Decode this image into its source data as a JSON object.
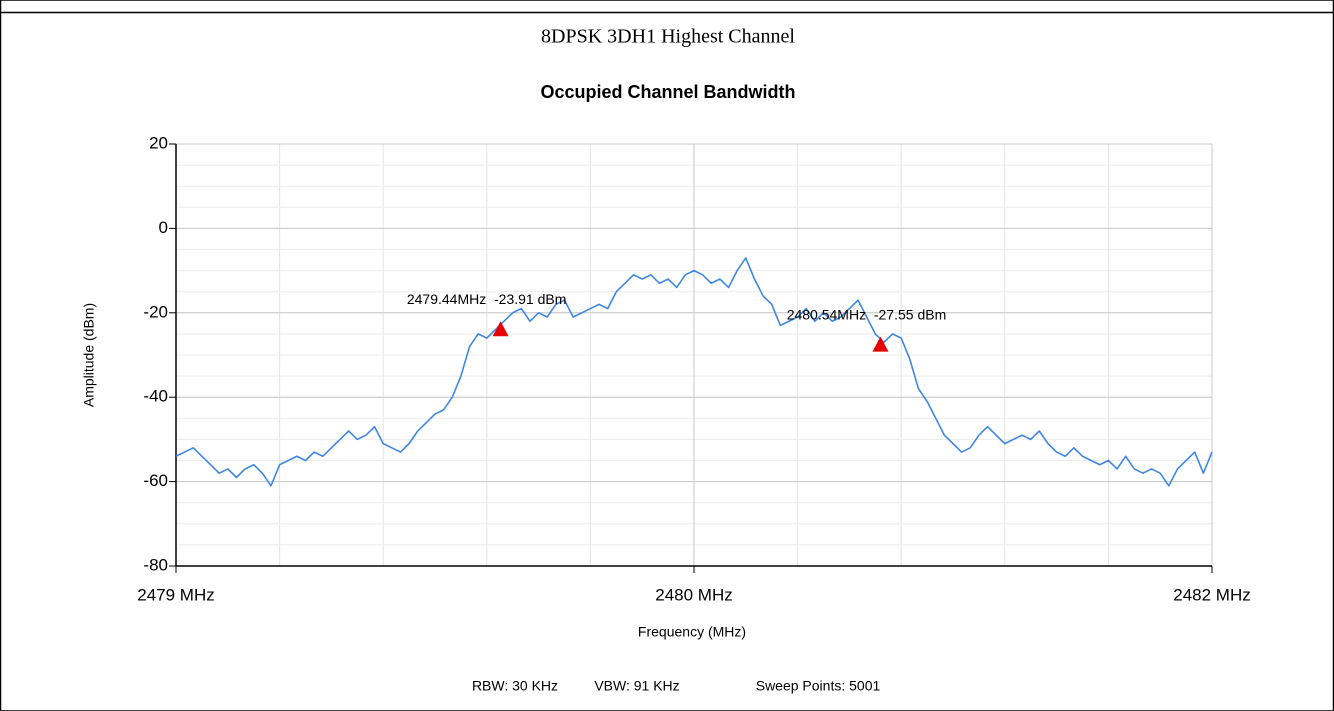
{
  "heading": "8DPSK 3DH1 Highest Channel",
  "footer": [
    "RBW: 30 KHz",
    "VBW: 91 KHz",
    "Sweep Points: 5001"
  ],
  "chart_data": {
    "type": "line",
    "title": "Occupied Channel Bandwidth",
    "xlabel": "Frequency (MHz)",
    "ylabel": "Amplitude (dBm)",
    "grid": true,
    "xlim": [
      2478.5,
      2481.5
    ],
    "xticks": [
      {
        "value": 2478.5,
        "label": "2479 MHz"
      },
      {
        "value": 2480,
        "label": "2480 MHz"
      },
      {
        "value": 2481.5,
        "label": "2482 MHz"
      }
    ],
    "ylim": [
      -80,
      20
    ],
    "yticks": [
      -80,
      -60,
      -40,
      -20,
      0,
      20
    ],
    "x": [
      2478.5,
      2478.525,
      2478.55,
      2478.575,
      2478.6,
      2478.625,
      2478.65,
      2478.675,
      2478.7,
      2478.725,
      2478.75,
      2478.775,
      2478.8,
      2478.825,
      2478.85,
      2478.875,
      2478.9,
      2478.925,
      2478.95,
      2478.975,
      2479,
      2479.025,
      2479.05,
      2479.075,
      2479.1,
      2479.125,
      2479.15,
      2479.175,
      2479.2,
      2479.225,
      2479.25,
      2479.275,
      2479.3,
      2479.325,
      2479.35,
      2479.375,
      2479.4,
      2479.425,
      2479.45,
      2479.475,
      2479.5,
      2479.525,
      2479.55,
      2479.575,
      2479.6,
      2479.625,
      2479.65,
      2479.675,
      2479.7,
      2479.725,
      2479.75,
      2479.775,
      2479.8,
      2479.825,
      2479.85,
      2479.875,
      2479.9,
      2479.925,
      2479.95,
      2479.975,
      2480,
      2480.025,
      2480.05,
      2480.075,
      2480.1,
      2480.125,
      2480.15,
      2480.175,
      2480.2,
      2480.225,
      2480.25,
      2480.275,
      2480.3,
      2480.325,
      2480.35,
      2480.375,
      2480.4,
      2480.425,
      2480.45,
      2480.475,
      2480.5,
      2480.525,
      2480.55,
      2480.575,
      2480.6,
      2480.625,
      2480.65,
      2480.675,
      2480.7,
      2480.725,
      2480.75,
      2480.775,
      2480.8,
      2480.825,
      2480.85,
      2480.875,
      2480.9,
      2480.925,
      2480.95,
      2480.975,
      2481,
      2481.025,
      2481.05,
      2481.075,
      2481.1,
      2481.125,
      2481.15,
      2481.175,
      2481.2,
      2481.225,
      2481.25,
      2481.275,
      2481.3,
      2481.325,
      2481.35,
      2481.375,
      2481.4,
      2481.425,
      2481.45,
      2481.475,
      2481.5
    ],
    "series": [
      {
        "color": "#3f87e3",
        "values": [
          -54,
          -53,
          -52,
          -54,
          -56,
          -58,
          -57,
          -59,
          -57,
          -56,
          -58,
          -61,
          -56,
          -55,
          -54,
          -55,
          -53,
          -54,
          -52,
          -50,
          -48,
          -50,
          -49,
          -47,
          -51,
          -52,
          -53,
          -51,
          -48,
          -46,
          -44,
          -43,
          -40,
          -35,
          -28,
          -25,
          -26,
          -24,
          -22,
          -20,
          -19,
          -22,
          -20,
          -21,
          -18,
          -17,
          -21,
          -20,
          -19,
          -18,
          -19,
          -15,
          -13,
          -11,
          -12,
          -11,
          -13,
          -12,
          -14,
          -11,
          -10,
          -11,
          -13,
          -12,
          -14,
          -10,
          -7,
          -12,
          -16,
          -18,
          -23,
          -22,
          -21,
          -19,
          -22,
          -20,
          -22,
          -21,
          -19,
          -17,
          -21,
          -25,
          -27,
          -25,
          -26,
          -31,
          -38,
          -41,
          -45,
          -49,
          -51,
          -53,
          -52,
          -49,
          -47,
          -49,
          -51,
          -50,
          -49,
          -50,
          -48,
          -51,
          -53,
          -54,
          -52,
          -54,
          -55,
          -56,
          -55,
          -57,
          -54,
          -57,
          -58,
          -57,
          -58,
          -61,
          -57,
          -55,
          -53,
          -58,
          -53
        ]
      }
    ],
    "markers": {
      "color": "#e60000",
      "x": [
        2479.44,
        2480.54
      ],
      "y": [
        -23.91,
        -27.55
      ],
      "labels": [
        "2479.44MHz  -23.91 dBm",
        "2480.54MHz  -27.55 dBm"
      ]
    }
  }
}
